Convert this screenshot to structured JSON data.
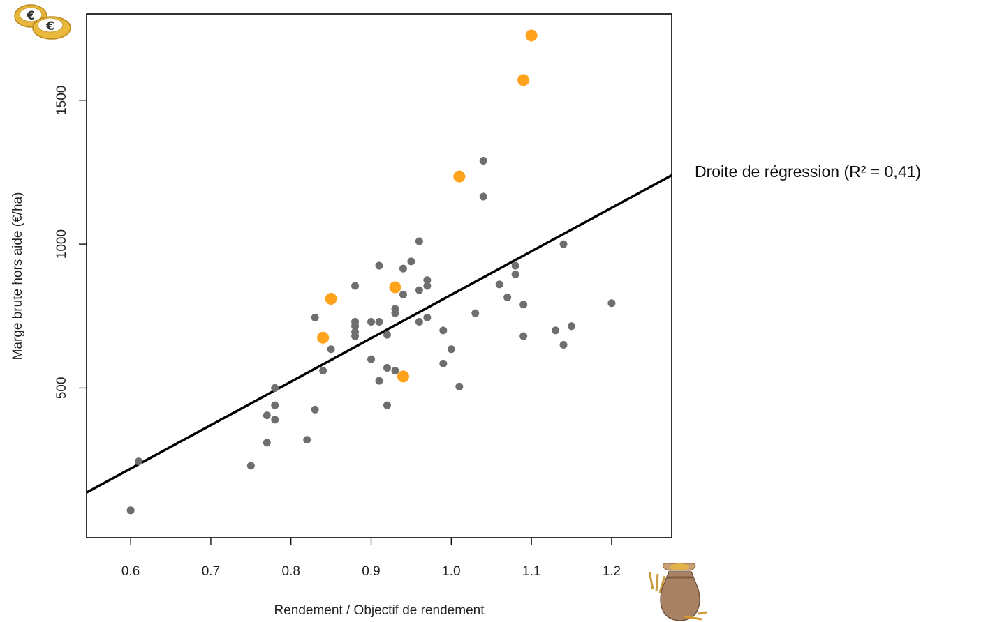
{
  "icons": {
    "top_left": "euro-coins-icon",
    "bottom_right": "grain-sack-icon"
  },
  "colors": {
    "highlight": "#FFA21C",
    "point": "#6E6E6E",
    "regression_line": "#000000"
  },
  "chart_data": {
    "type": "scatter",
    "xlabel": "Rendement / Objectif de rendement",
    "ylabel": "Marge brute hors aide (€/ha)",
    "xlim": [
      0.545,
      1.275
    ],
    "ylim": [
      -20,
      1800
    ],
    "x_ticks": [
      "0.6",
      "0.7",
      "0.8",
      "0.9",
      "1.0",
      "1.1",
      "1.2"
    ],
    "y_ticks": [
      "500",
      "1000",
      "1500"
    ],
    "grid": false,
    "annotation": "Droite de régression (R² = 0,41)",
    "regression_line": {
      "slope": 1510,
      "intercept": -686
    },
    "series": [
      {
        "color": "#6E6E6E",
        "points": [
          [
            0.6,
            75
          ],
          [
            0.61,
            245
          ],
          [
            0.75,
            230
          ],
          [
            0.77,
            310
          ],
          [
            0.77,
            405
          ],
          [
            0.78,
            390
          ],
          [
            0.78,
            440
          ],
          [
            0.78,
            500
          ],
          [
            0.82,
            320
          ],
          [
            0.83,
            425
          ],
          [
            0.83,
            745
          ],
          [
            0.84,
            560
          ],
          [
            0.85,
            635
          ],
          [
            0.88,
            680
          ],
          [
            0.88,
            695
          ],
          [
            0.88,
            715
          ],
          [
            0.88,
            730
          ],
          [
            0.88,
            855
          ],
          [
            0.9,
            600
          ],
          [
            0.9,
            730
          ],
          [
            0.91,
            730
          ],
          [
            0.91,
            525
          ],
          [
            0.91,
            925
          ],
          [
            0.92,
            440
          ],
          [
            0.92,
            570
          ],
          [
            0.92,
            685
          ],
          [
            0.93,
            560
          ],
          [
            0.93,
            760
          ],
          [
            0.93,
            775
          ],
          [
            0.94,
            825
          ],
          [
            0.94,
            915
          ],
          [
            0.95,
            940
          ],
          [
            0.96,
            730
          ],
          [
            0.96,
            840
          ],
          [
            0.96,
            1010
          ],
          [
            0.97,
            745
          ],
          [
            0.97,
            855
          ],
          [
            0.97,
            875
          ],
          [
            0.99,
            585
          ],
          [
            0.99,
            700
          ],
          [
            1.0,
            635
          ],
          [
            1.01,
            505
          ],
          [
            1.03,
            760
          ],
          [
            1.04,
            1165
          ],
          [
            1.04,
            1290
          ],
          [
            1.06,
            860
          ],
          [
            1.07,
            815
          ],
          [
            1.08,
            895
          ],
          [
            1.08,
            925
          ],
          [
            1.09,
            680
          ],
          [
            1.09,
            790
          ],
          [
            1.13,
            700
          ],
          [
            1.14,
            650
          ],
          [
            1.14,
            1000
          ],
          [
            1.15,
            715
          ],
          [
            1.2,
            795
          ]
        ]
      },
      {
        "color": "#FFA21C",
        "points": [
          [
            0.84,
            675
          ],
          [
            0.85,
            810
          ],
          [
            0.93,
            850
          ],
          [
            0.94,
            540
          ],
          [
            1.01,
            1235
          ],
          [
            1.09,
            1570
          ],
          [
            1.1,
            1725
          ]
        ]
      }
    ]
  }
}
